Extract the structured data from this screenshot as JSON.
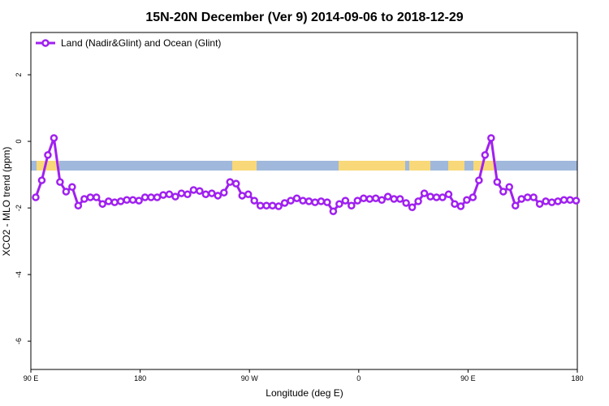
{
  "chart_data": {
    "type": "line",
    "title": "15N-20N December (Ver 9)   2014-09-06 to 2018-12-29",
    "x_label": "Longitude (deg E)",
    "y_label": "XCO2 - MLO trend (ppm)",
    "x": [
      94,
      99,
      104,
      109,
      114,
      119,
      124,
      129,
      134,
      139,
      144,
      149,
      154,
      159,
      164,
      169,
      174,
      179,
      184,
      189,
      194,
      199,
      204,
      209,
      214,
      219,
      224,
      229,
      234,
      239,
      244,
      249,
      254,
      259,
      264,
      269,
      274,
      279,
      284,
      289,
      294,
      299,
      304,
      309,
      314,
      319,
      324,
      329,
      334,
      339,
      344,
      349,
      354,
      359,
      364,
      369,
      374,
      379,
      384,
      389,
      394,
      399,
      404,
      409,
      414,
      419,
      424,
      429,
      434,
      439,
      444,
      449,
      454,
      459,
      464,
      469,
      474,
      479,
      484,
      489,
      494,
      499,
      504,
      509,
      514,
      519,
      524,
      529,
      534,
      539
    ],
    "series": [
      {
        "name": "Land (Nadir&Glint) and Ocean (Glint)",
        "color": "#a020f0",
        "values": [
          -1.68,
          -1.17,
          -0.41,
          0.1,
          -1.22,
          -1.51,
          -1.37,
          -1.93,
          -1.73,
          -1.68,
          -1.68,
          -1.88,
          -1.8,
          -1.83,
          -1.8,
          -1.76,
          -1.76,
          -1.78,
          -1.68,
          -1.68,
          -1.68,
          -1.61,
          -1.59,
          -1.66,
          -1.56,
          -1.59,
          -1.46,
          -1.49,
          -1.59,
          -1.56,
          -1.63,
          -1.54,
          -1.22,
          -1.27,
          -1.63,
          -1.59,
          -1.78,
          -1.93,
          -1.93,
          -1.93,
          -1.95,
          -1.85,
          -1.78,
          -1.71,
          -1.78,
          -1.8,
          -1.83,
          -1.8,
          -1.83,
          -2.1,
          -1.88,
          -1.78,
          -1.93,
          -1.78,
          -1.71,
          -1.73,
          -1.71,
          -1.76,
          -1.66,
          -1.73,
          -1.73,
          -1.85,
          -1.98,
          -1.8,
          -1.56,
          -1.66,
          -1.68,
          -1.68,
          -1.59,
          -1.88,
          -1.95,
          -1.76,
          -1.68,
          -1.17,
          -0.41,
          0.1,
          -1.22,
          -1.51,
          -1.37,
          -1.93,
          -1.73,
          -1.68,
          -1.68,
          -1.88,
          -1.8,
          -1.83,
          -1.8,
          -1.76,
          -1.76,
          -1.78
        ]
      }
    ],
    "xlim": [
      90,
      540
    ],
    "xticks": [
      {
        "value": 90,
        "label": "90 E"
      },
      180,
      {
        "value": 270,
        "label": "90 W"
      },
      {
        "value": 360,
        "label": "0"
      },
      {
        "value": 450,
        "label": "90 E"
      },
      {
        "value": 540,
        "label": "180"
      }
    ],
    "ylim": [
      -6.85,
      3.27
    ],
    "yticks": [
      -6,
      -4,
      -2,
      0,
      2
    ],
    "legend": "topleft"
  }
}
